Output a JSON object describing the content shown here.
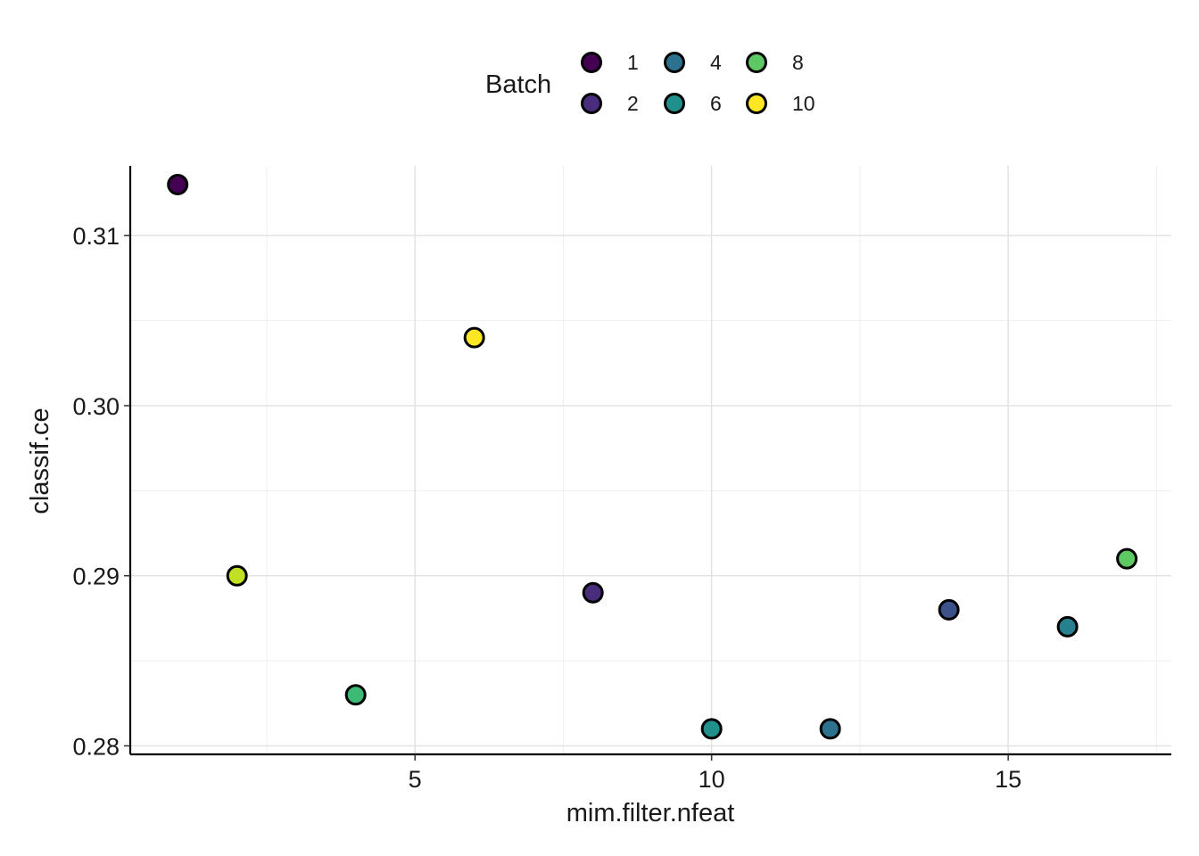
{
  "chart_data": {
    "type": "scatter",
    "xlabel": "mim.filter.nfeat",
    "ylabel": "classif.ce",
    "xlim": [
      0.2,
      17.75
    ],
    "ylim": [
      0.2795,
      0.3141
    ],
    "x_ticks": [
      5,
      10,
      15
    ],
    "x_tick_labels": [
      "5",
      "10",
      "15"
    ],
    "x_minor_ticks": [
      2.5,
      7.5,
      12.5,
      17.5
    ],
    "y_ticks": [
      0.28,
      0.29,
      0.3,
      0.31
    ],
    "y_tick_labels": [
      "0.28",
      "0.29",
      "0.30",
      "0.31"
    ],
    "y_minor_ticks": [
      0.285,
      0.295,
      0.305
    ],
    "grid": true,
    "legend": {
      "title": "Batch",
      "position": "top",
      "entries": [
        {
          "label": "1",
          "color": "#440154"
        },
        {
          "label": "2",
          "color": "#472D7B"
        },
        {
          "label": "4",
          "color": "#2C728E"
        },
        {
          "label": "6",
          "color": "#21908C"
        },
        {
          "label": "8",
          "color": "#5EC962"
        },
        {
          "label": "10",
          "color": "#FDE725"
        }
      ]
    },
    "points": [
      {
        "x": 1,
        "y": 0.313,
        "batch": 1,
        "color": "#440154"
      },
      {
        "x": 2,
        "y": 0.29,
        "batch": 9,
        "color": "#C2DF23"
      },
      {
        "x": 4,
        "y": 0.283,
        "batch": 7,
        "color": "#3BBB75"
      },
      {
        "x": 6,
        "y": 0.304,
        "batch": 10,
        "color": "#FDE725"
      },
      {
        "x": 8,
        "y": 0.289,
        "batch": 2,
        "color": "#472D7B"
      },
      {
        "x": 10,
        "y": 0.281,
        "batch": 6,
        "color": "#21908C"
      },
      {
        "x": 12,
        "y": 0.281,
        "batch": 4,
        "color": "#2C728E"
      },
      {
        "x": 14,
        "y": 0.288,
        "batch": 3,
        "color": "#3B528B"
      },
      {
        "x": 16,
        "y": 0.287,
        "batch": 5,
        "color": "#27808E"
      },
      {
        "x": 17,
        "y": 0.291,
        "batch": 8,
        "color": "#5EC962"
      }
    ]
  }
}
